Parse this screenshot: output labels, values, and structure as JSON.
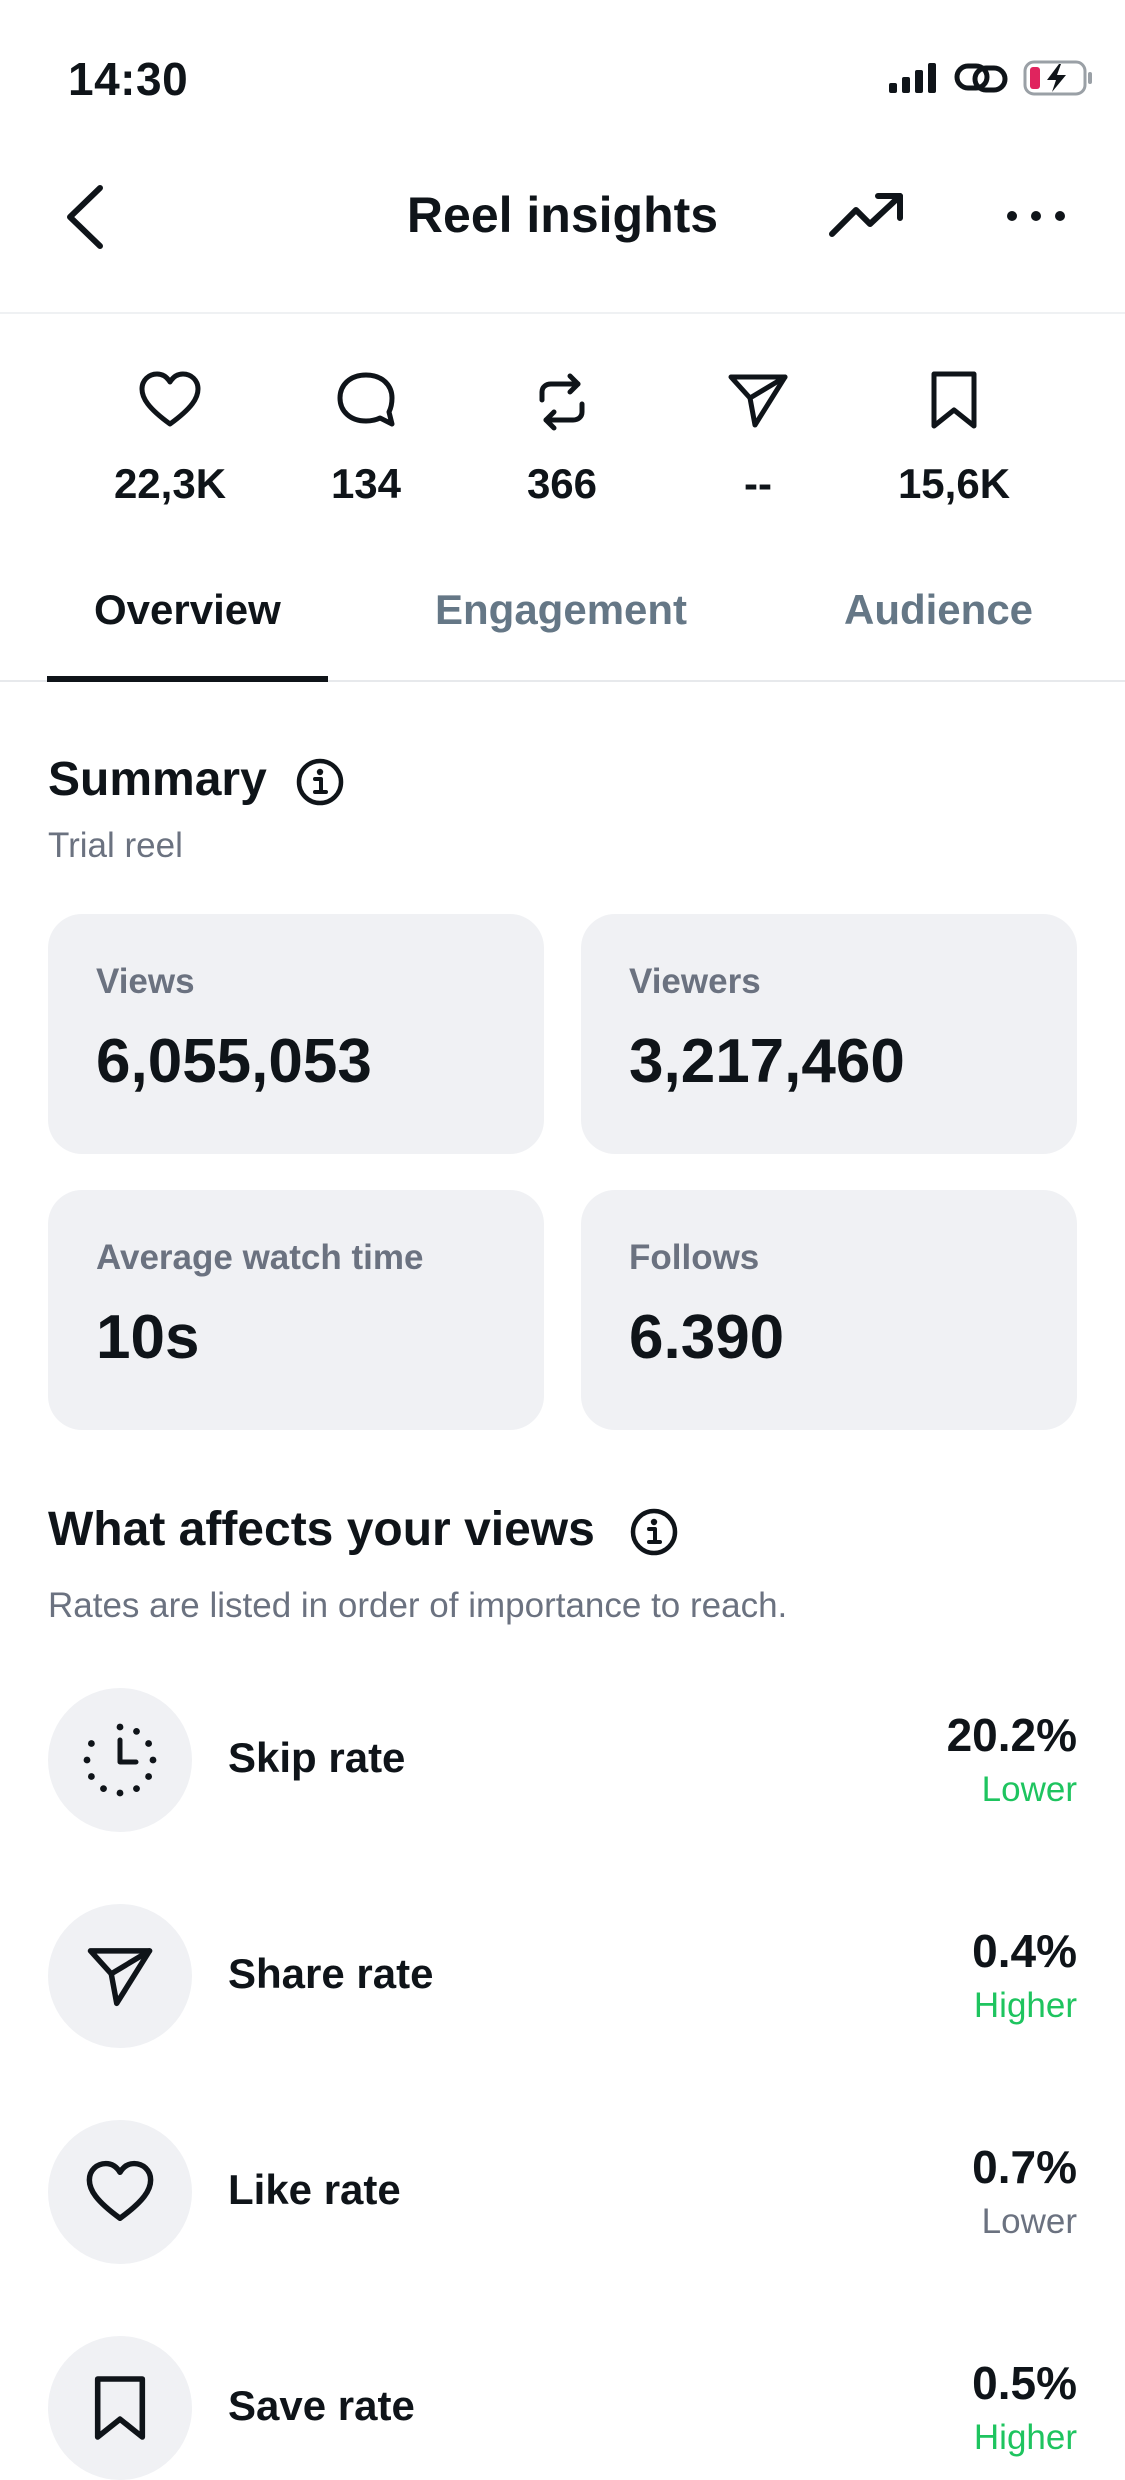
{
  "status_bar": {
    "time": "14:30"
  },
  "header": {
    "title": "Reel insights",
    "back_icon": "chevron-left-icon",
    "trend_icon": "trending-up-icon",
    "more_icon": "more-horizontal-icon"
  },
  "stats": [
    {
      "icon": "heart-icon",
      "value": "22,3K"
    },
    {
      "icon": "comment-icon",
      "value": "134"
    },
    {
      "icon": "repost-icon",
      "value": "366"
    },
    {
      "icon": "share-icon",
      "value": "--"
    },
    {
      "icon": "bookmark-icon",
      "value": "15,6K"
    }
  ],
  "tabs": [
    {
      "label": "Overview",
      "active": true
    },
    {
      "label": "Engagement",
      "active": false
    },
    {
      "label": "Audience",
      "active": false
    }
  ],
  "summary": {
    "title": "Summary",
    "subtitle": "Trial reel",
    "cards": [
      {
        "label": "Views",
        "value": "6,055,053"
      },
      {
        "label": "Viewers",
        "value": "3,217,460"
      },
      {
        "label": "Average watch time",
        "value": "10s"
      },
      {
        "label": "Follows",
        "value": "6.390"
      }
    ]
  },
  "factors": {
    "title": "What affects your views",
    "subtitle": "Rates are listed in order of importance to reach.",
    "items": [
      {
        "icon": "timer-icon",
        "name": "Skip rate",
        "rate": "20.2%",
        "trend": "Lower",
        "trend_color": "#1ec45f"
      },
      {
        "icon": "share-icon",
        "name": "Share rate",
        "rate": "0.4%",
        "trend": "Higher",
        "trend_color": "#1ec45f"
      },
      {
        "icon": "heart-icon",
        "name": "Like rate",
        "rate": "0.7%",
        "trend": "Lower",
        "trend_color": "#6b7280"
      },
      {
        "icon": "bookmark-icon",
        "name": "Save rate",
        "rate": "0.5%",
        "trend": "Higher",
        "trend_color": "#1ec45f"
      }
    ]
  },
  "colors": {
    "accent_green": "#1ec45f",
    "text_primary": "#0f1419",
    "text_secondary": "#6b7280",
    "card_bg": "#f0f1f4",
    "battery_low": "#e0245e"
  }
}
